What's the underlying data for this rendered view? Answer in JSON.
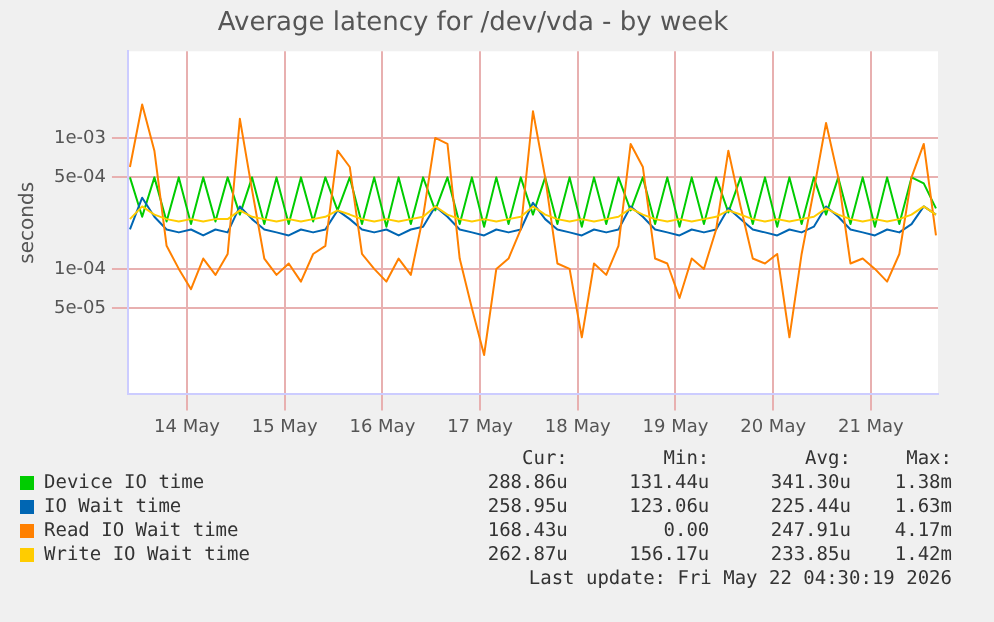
{
  "chart_data": {
    "type": "line",
    "title": "Average latency for /dev/vda - by week",
    "ylabel": "seconds",
    "x": [
      "2026-05-13T22:00",
      "2026-05-14T01:00",
      "2026-05-14T04:00",
      "2026-05-14T07:00",
      "2026-05-14T10:00",
      "2026-05-14T13:00",
      "2026-05-14T16:00",
      "2026-05-14T19:00",
      "2026-05-14T22:00",
      "2026-05-15T01:00",
      "2026-05-15T04:00",
      "2026-05-15T07:00",
      "2026-05-15T10:00",
      "2026-05-15T13:00",
      "2026-05-15T16:00",
      "2026-05-15T19:00",
      "2026-05-15T22:00",
      "2026-05-16T01:00",
      "2026-05-16T04:00",
      "2026-05-16T07:00",
      "2026-05-16T10:00",
      "2026-05-16T13:00",
      "2026-05-16T16:00",
      "2026-05-16T19:00",
      "2026-05-16T22:00",
      "2026-05-17T01:00",
      "2026-05-17T04:00",
      "2026-05-17T07:00",
      "2026-05-17T10:00",
      "2026-05-17T13:00",
      "2026-05-17T16:00",
      "2026-05-17T19:00",
      "2026-05-17T22:00",
      "2026-05-18T01:00",
      "2026-05-18T04:00",
      "2026-05-18T07:00",
      "2026-05-18T10:00",
      "2026-05-18T13:00",
      "2026-05-18T16:00",
      "2026-05-18T19:00",
      "2026-05-18T22:00",
      "2026-05-19T01:00",
      "2026-05-19T04:00",
      "2026-05-19T07:00",
      "2026-05-19T10:00",
      "2026-05-19T13:00",
      "2026-05-19T16:00",
      "2026-05-19T19:00",
      "2026-05-19T22:00",
      "2026-05-20T01:00",
      "2026-05-20T04:00",
      "2026-05-20T07:00",
      "2026-05-20T10:00",
      "2026-05-20T13:00",
      "2026-05-20T16:00",
      "2026-05-20T19:00",
      "2026-05-20T22:00",
      "2026-05-21T01:00",
      "2026-05-21T04:00",
      "2026-05-21T07:00",
      "2026-05-21T10:00",
      "2026-05-21T13:00",
      "2026-05-21T16:00",
      "2026-05-21T19:00",
      "2026-05-21T22:00",
      "2026-05-22T01:00",
      "2026-05-22T04:00"
    ],
    "series": [
      {
        "name": "Device IO time",
        "color": "#00cc00",
        "values": [
          0.0005,
          0.00025,
          0.0005,
          0.00023,
          0.0005,
          0.00022,
          0.0005,
          0.00023,
          0.0005,
          0.00026,
          0.0005,
          0.00022,
          0.0005,
          0.00022,
          0.0005,
          0.00023,
          0.0005,
          0.00028,
          0.0005,
          0.00022,
          0.0005,
          0.00021,
          0.0005,
          0.00022,
          0.0005,
          0.00028,
          0.0005,
          0.00022,
          0.0005,
          0.00021,
          0.0005,
          0.00022,
          0.0005,
          0.00026,
          0.0005,
          0.00022,
          0.0005,
          0.00021,
          0.0005,
          0.00022,
          0.0005,
          0.00028,
          0.0005,
          0.00022,
          0.0005,
          0.00021,
          0.0005,
          0.00022,
          0.0005,
          0.00027,
          0.0005,
          0.00022,
          0.0005,
          0.00021,
          0.0005,
          0.00022,
          0.0005,
          0.00026,
          0.0005,
          0.00022,
          0.0005,
          0.00021,
          0.0005,
          0.00022,
          0.0005,
          0.00045,
          0.00029
        ]
      },
      {
        "name": "IO Wait time",
        "color": "#0066b3",
        "values": [
          0.0002,
          0.00035,
          0.00025,
          0.0002,
          0.00019,
          0.0002,
          0.00018,
          0.0002,
          0.00019,
          0.0003,
          0.00024,
          0.0002,
          0.00019,
          0.00018,
          0.0002,
          0.00019,
          0.0002,
          0.00028,
          0.00024,
          0.0002,
          0.00019,
          0.0002,
          0.00018,
          0.0002,
          0.00021,
          0.0003,
          0.00025,
          0.0002,
          0.00019,
          0.00018,
          0.0002,
          0.00019,
          0.0002,
          0.00032,
          0.00024,
          0.0002,
          0.00019,
          0.00018,
          0.0002,
          0.00019,
          0.0002,
          0.0003,
          0.00025,
          0.0002,
          0.00019,
          0.00018,
          0.0002,
          0.00019,
          0.0002,
          0.00029,
          0.00024,
          0.0002,
          0.00019,
          0.00018,
          0.0002,
          0.00019,
          0.00021,
          0.0003,
          0.00025,
          0.0002,
          0.00019,
          0.00018,
          0.0002,
          0.00019,
          0.00022,
          0.0003,
          0.00026
        ]
      },
      {
        "name": "Read IO Wait time",
        "color": "#ff8000",
        "values": [
          0.0006,
          0.0018,
          0.0008,
          0.00015,
          0.0001,
          7e-05,
          0.00012,
          9e-05,
          0.00013,
          0.0014,
          0.0004,
          0.00012,
          9e-05,
          0.00011,
          8e-05,
          0.00013,
          0.00015,
          0.0008,
          0.0006,
          0.00013,
          0.0001,
          8e-05,
          0.00012,
          9e-05,
          0.00025,
          0.001,
          0.0009,
          0.00012,
          5e-05,
          2.2e-05,
          0.0001,
          0.00012,
          0.0002,
          0.0016,
          0.0005,
          0.00011,
          0.0001,
          3e-05,
          0.00011,
          9e-05,
          0.00015,
          0.0009,
          0.0006,
          0.00012,
          0.00011,
          6e-05,
          0.00012,
          0.0001,
          0.0002,
          0.0008,
          0.0003,
          0.00012,
          0.00011,
          0.00013,
          3e-05,
          0.00013,
          0.0004,
          0.0013,
          0.0005,
          0.00011,
          0.00012,
          0.0001,
          8e-05,
          0.00013,
          0.0005,
          0.0009,
          0.00018
        ]
      },
      {
        "name": "Write IO Wait time",
        "color": "#ffcc00",
        "values": [
          0.00024,
          0.0003,
          0.00026,
          0.00024,
          0.00023,
          0.00024,
          0.00023,
          0.00024,
          0.00024,
          0.00028,
          0.00025,
          0.00024,
          0.00023,
          0.00024,
          0.00023,
          0.00024,
          0.00025,
          0.00028,
          0.00026,
          0.00024,
          0.00023,
          0.00024,
          0.00023,
          0.00024,
          0.00025,
          0.0003,
          0.00026,
          0.00024,
          0.00023,
          0.00024,
          0.00023,
          0.00024,
          0.00025,
          0.0003,
          0.00026,
          0.00024,
          0.00023,
          0.00024,
          0.00023,
          0.00024,
          0.00025,
          0.00029,
          0.00026,
          0.00024,
          0.00023,
          0.00024,
          0.00023,
          0.00024,
          0.00025,
          0.00028,
          0.00026,
          0.00024,
          0.00023,
          0.00024,
          0.00023,
          0.00024,
          0.00025,
          0.00029,
          0.00026,
          0.00024,
          0.00023,
          0.00024,
          0.00023,
          0.00024,
          0.00026,
          0.0003,
          0.00026
        ]
      }
    ],
    "log": "y",
    "ylim": [
      1.1e-05,
      0.0046
    ],
    "yticks": [
      {
        "value": 5e-05,
        "label": "5e-05"
      },
      {
        "value": 0.0001,
        "label": "1e-04"
      },
      {
        "value": 0.0005,
        "label": "5e-04"
      },
      {
        "value": 0.001,
        "label": "1e-03"
      }
    ],
    "xlim": [
      "2026-05-13T21:30",
      "2026-05-22T04:30"
    ],
    "xticks": [
      {
        "value": "2026-05-14T12:00",
        "label": "14 May"
      },
      {
        "value": "2026-05-15T12:00",
        "label": "15 May"
      },
      {
        "value": "2026-05-16T12:00",
        "label": "16 May"
      },
      {
        "value": "2026-05-17T12:00",
        "label": "17 May"
      },
      {
        "value": "2026-05-18T12:00",
        "label": "18 May"
      },
      {
        "value": "2026-05-19T12:00",
        "label": "19 May"
      },
      {
        "value": "2026-05-20T12:00",
        "label": "20 May"
      },
      {
        "value": "2026-05-21T12:00",
        "label": "21 May"
      }
    ],
    "grid": true,
    "legend": "bottom",
    "marker": "none",
    "line_style": "solid",
    "annotations": [
      "Cur:",
      "Min:",
      "Avg:",
      "Max:",
      "288.86u",
      "131.44u",
      "341.30u",
      "1.38m",
      "258.95u",
      "123.06u",
      "225.44u",
      "1.63m",
      "168.43u",
      "0.00",
      "247.91u",
      "4.17m",
      "262.87u",
      "156.17u",
      "233.85u",
      "1.42m",
      "Last update: Fri May 22 04:30:19 2026"
    ]
  }
}
